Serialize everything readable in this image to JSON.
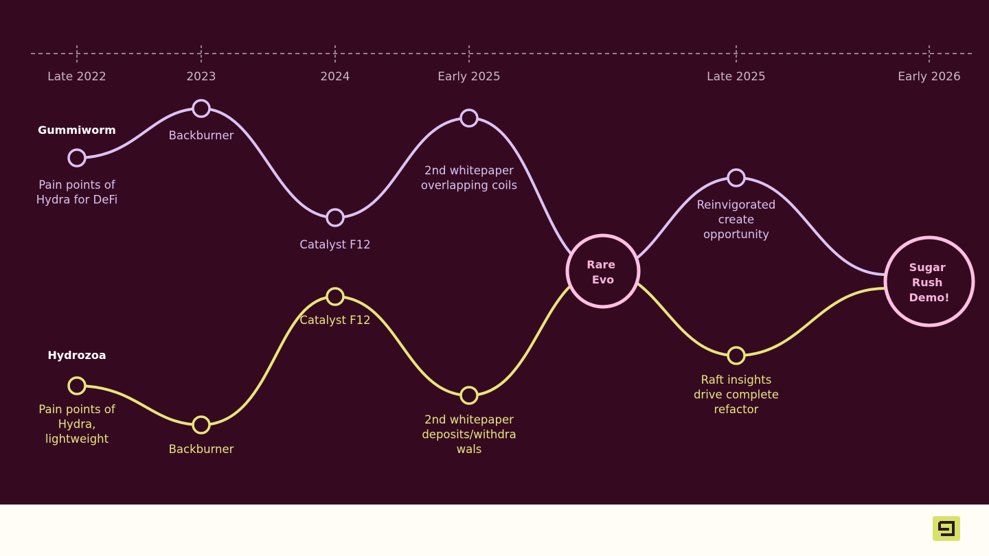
{
  "timeline": {
    "ticks": [
      "Late 2022",
      "2023",
      "2024",
      "Early 2025",
      "Late 2025",
      "Early 2026"
    ]
  },
  "tracks": {
    "gummiworm": {
      "name": "Gummiworm",
      "color": "#dcc3f5",
      "milestones": [
        [
          "Pain points of",
          "Hydra for DeFi"
        ],
        [
          "Backburner"
        ],
        [
          "Catalyst F12"
        ],
        [
          "2nd whitepaper",
          "overlapping coils"
        ],
        [
          "Reinvigorated",
          "create",
          "opportunity"
        ]
      ]
    },
    "hydrozoa": {
      "name": "Hydrozoa",
      "color": "#e9e57a",
      "milestones": [
        [
          "Pain points of",
          "Hydra,",
          "lightweight"
        ],
        [
          "Backburner"
        ],
        [
          "Catalyst F12"
        ],
        [
          "2nd whitepaper",
          "deposits/withdra",
          "wals"
        ],
        [
          "Raft insights",
          "drive complete",
          "refactor"
        ]
      ]
    }
  },
  "hubs": {
    "rare_evo": [
      "Rare",
      "Evo"
    ],
    "sugar_rush": [
      "Sugar",
      "Rush",
      "Demo!"
    ],
    "color": "#ffc0e2"
  },
  "colors": {
    "background": "#350a21",
    "footer": "#fffdf5",
    "logo": "#d8e26a",
    "timeline": "#b8a6b0"
  },
  "logo": {
    "icon": "g-logo-icon"
  }
}
